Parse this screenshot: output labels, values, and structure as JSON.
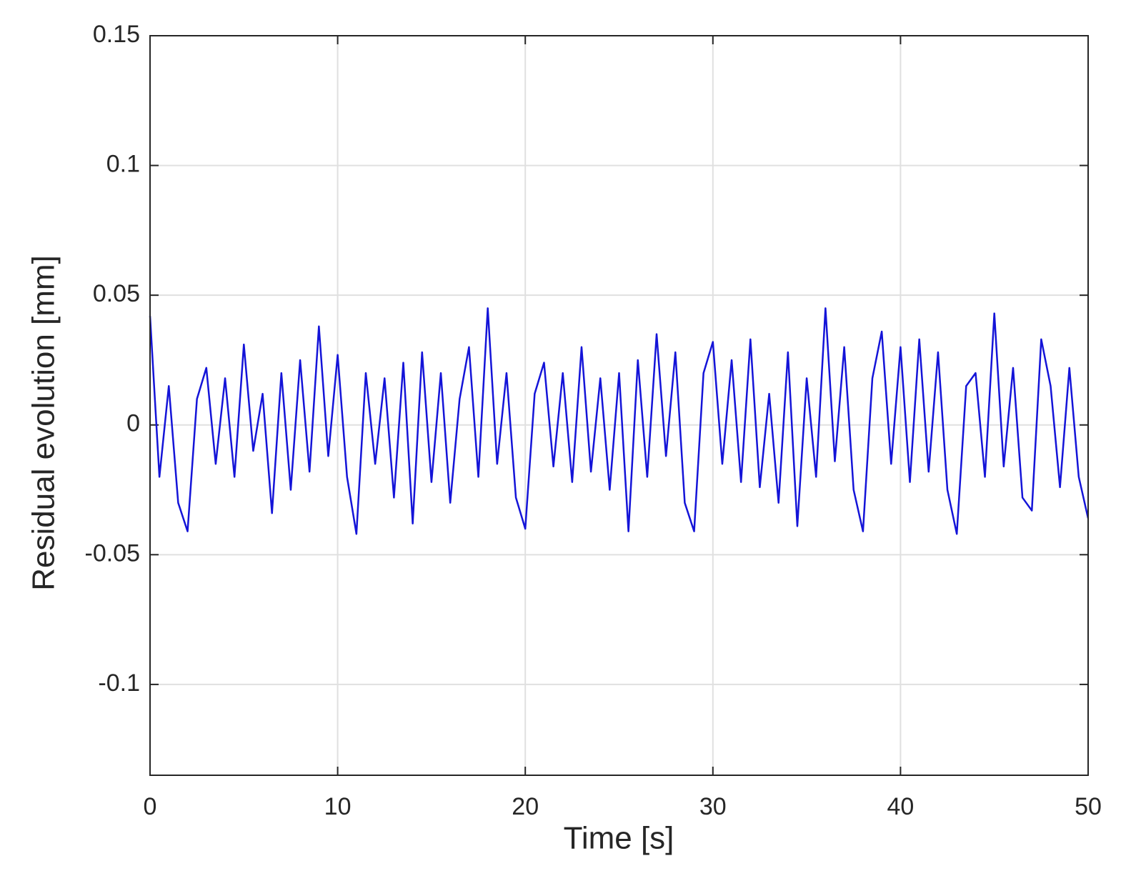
{
  "chart_data": {
    "type": "line",
    "xlabel": "Time [s]",
    "ylabel": "Residual evolution [mm]",
    "xlim": [
      0,
      50
    ],
    "xticks": [
      0,
      10,
      20,
      30,
      40,
      50
    ],
    "ylim": [
      -0.135,
      0.15
    ],
    "yticks": [
      0.15,
      0.1,
      0.05,
      0,
      -0.05,
      -0.1
    ],
    "grid": true,
    "x": [
      0,
      0.5,
      1,
      1.5,
      2,
      2.5,
      3,
      3.5,
      4,
      4.5,
      5,
      5.5,
      6,
      6.5,
      7,
      7.5,
      8,
      8.5,
      9,
      9.5,
      10,
      10.5,
      11,
      11.5,
      12,
      12.5,
      13,
      13.5,
      14,
      14.5,
      15,
      15.5,
      16,
      16.5,
      17,
      17.5,
      18,
      18.5,
      19,
      19.5,
      20,
      20.5,
      21,
      21.5,
      22,
      22.5,
      23,
      23.5,
      24,
      24.5,
      25,
      25.5,
      26,
      26.5,
      27,
      27.5,
      28,
      28.5,
      29,
      29.5,
      30,
      30.5,
      31,
      31.5,
      32,
      32.5,
      33,
      33.5,
      34,
      34.5,
      35,
      35.5,
      36,
      36.5,
      37,
      37.5,
      38,
      38.5,
      39,
      39.5,
      40,
      40.5,
      41,
      41.5,
      42,
      42.5,
      43,
      43.5,
      44,
      44.5,
      45,
      45.5,
      46,
      46.5,
      47,
      47.5,
      48,
      48.5,
      49,
      49.5,
      50
    ],
    "series": [
      {
        "color": "#1414d8",
        "values": [
          0.042,
          -0.02,
          0.015,
          -0.03,
          -0.041,
          0.01,
          0.022,
          -0.015,
          0.018,
          -0.02,
          0.031,
          -0.01,
          0.012,
          -0.034,
          0.02,
          -0.025,
          0.025,
          -0.018,
          0.038,
          -0.012,
          0.027,
          -0.02,
          -0.042,
          0.02,
          -0.015,
          0.018,
          -0.028,
          0.024,
          -0.038,
          0.028,
          -0.022,
          0.02,
          -0.03,
          0.01,
          0.03,
          -0.02,
          0.045,
          -0.015,
          0.02,
          -0.028,
          -0.04,
          0.012,
          0.024,
          -0.016,
          0.02,
          -0.022,
          0.03,
          -0.018,
          0.018,
          -0.025,
          0.02,
          -0.041,
          0.025,
          -0.02,
          0.035,
          -0.012,
          0.028,
          -0.03,
          -0.041,
          0.02,
          0.032,
          -0.015,
          0.025,
          -0.022,
          0.033,
          -0.024,
          0.012,
          -0.03,
          0.028,
          -0.039,
          0.018,
          -0.02,
          0.045,
          -0.014,
          0.03,
          -0.025,
          -0.041,
          0.018,
          0.036,
          -0.015,
          0.03,
          -0.022,
          0.033,
          -0.018,
          0.028,
          -0.025,
          -0.042,
          0.015,
          0.02,
          -0.02,
          0.043,
          -0.016,
          0.022,
          -0.028,
          -0.033,
          0.033,
          0.015,
          -0.024,
          0.022,
          -0.02,
          -0.036
        ]
      }
    ]
  }
}
